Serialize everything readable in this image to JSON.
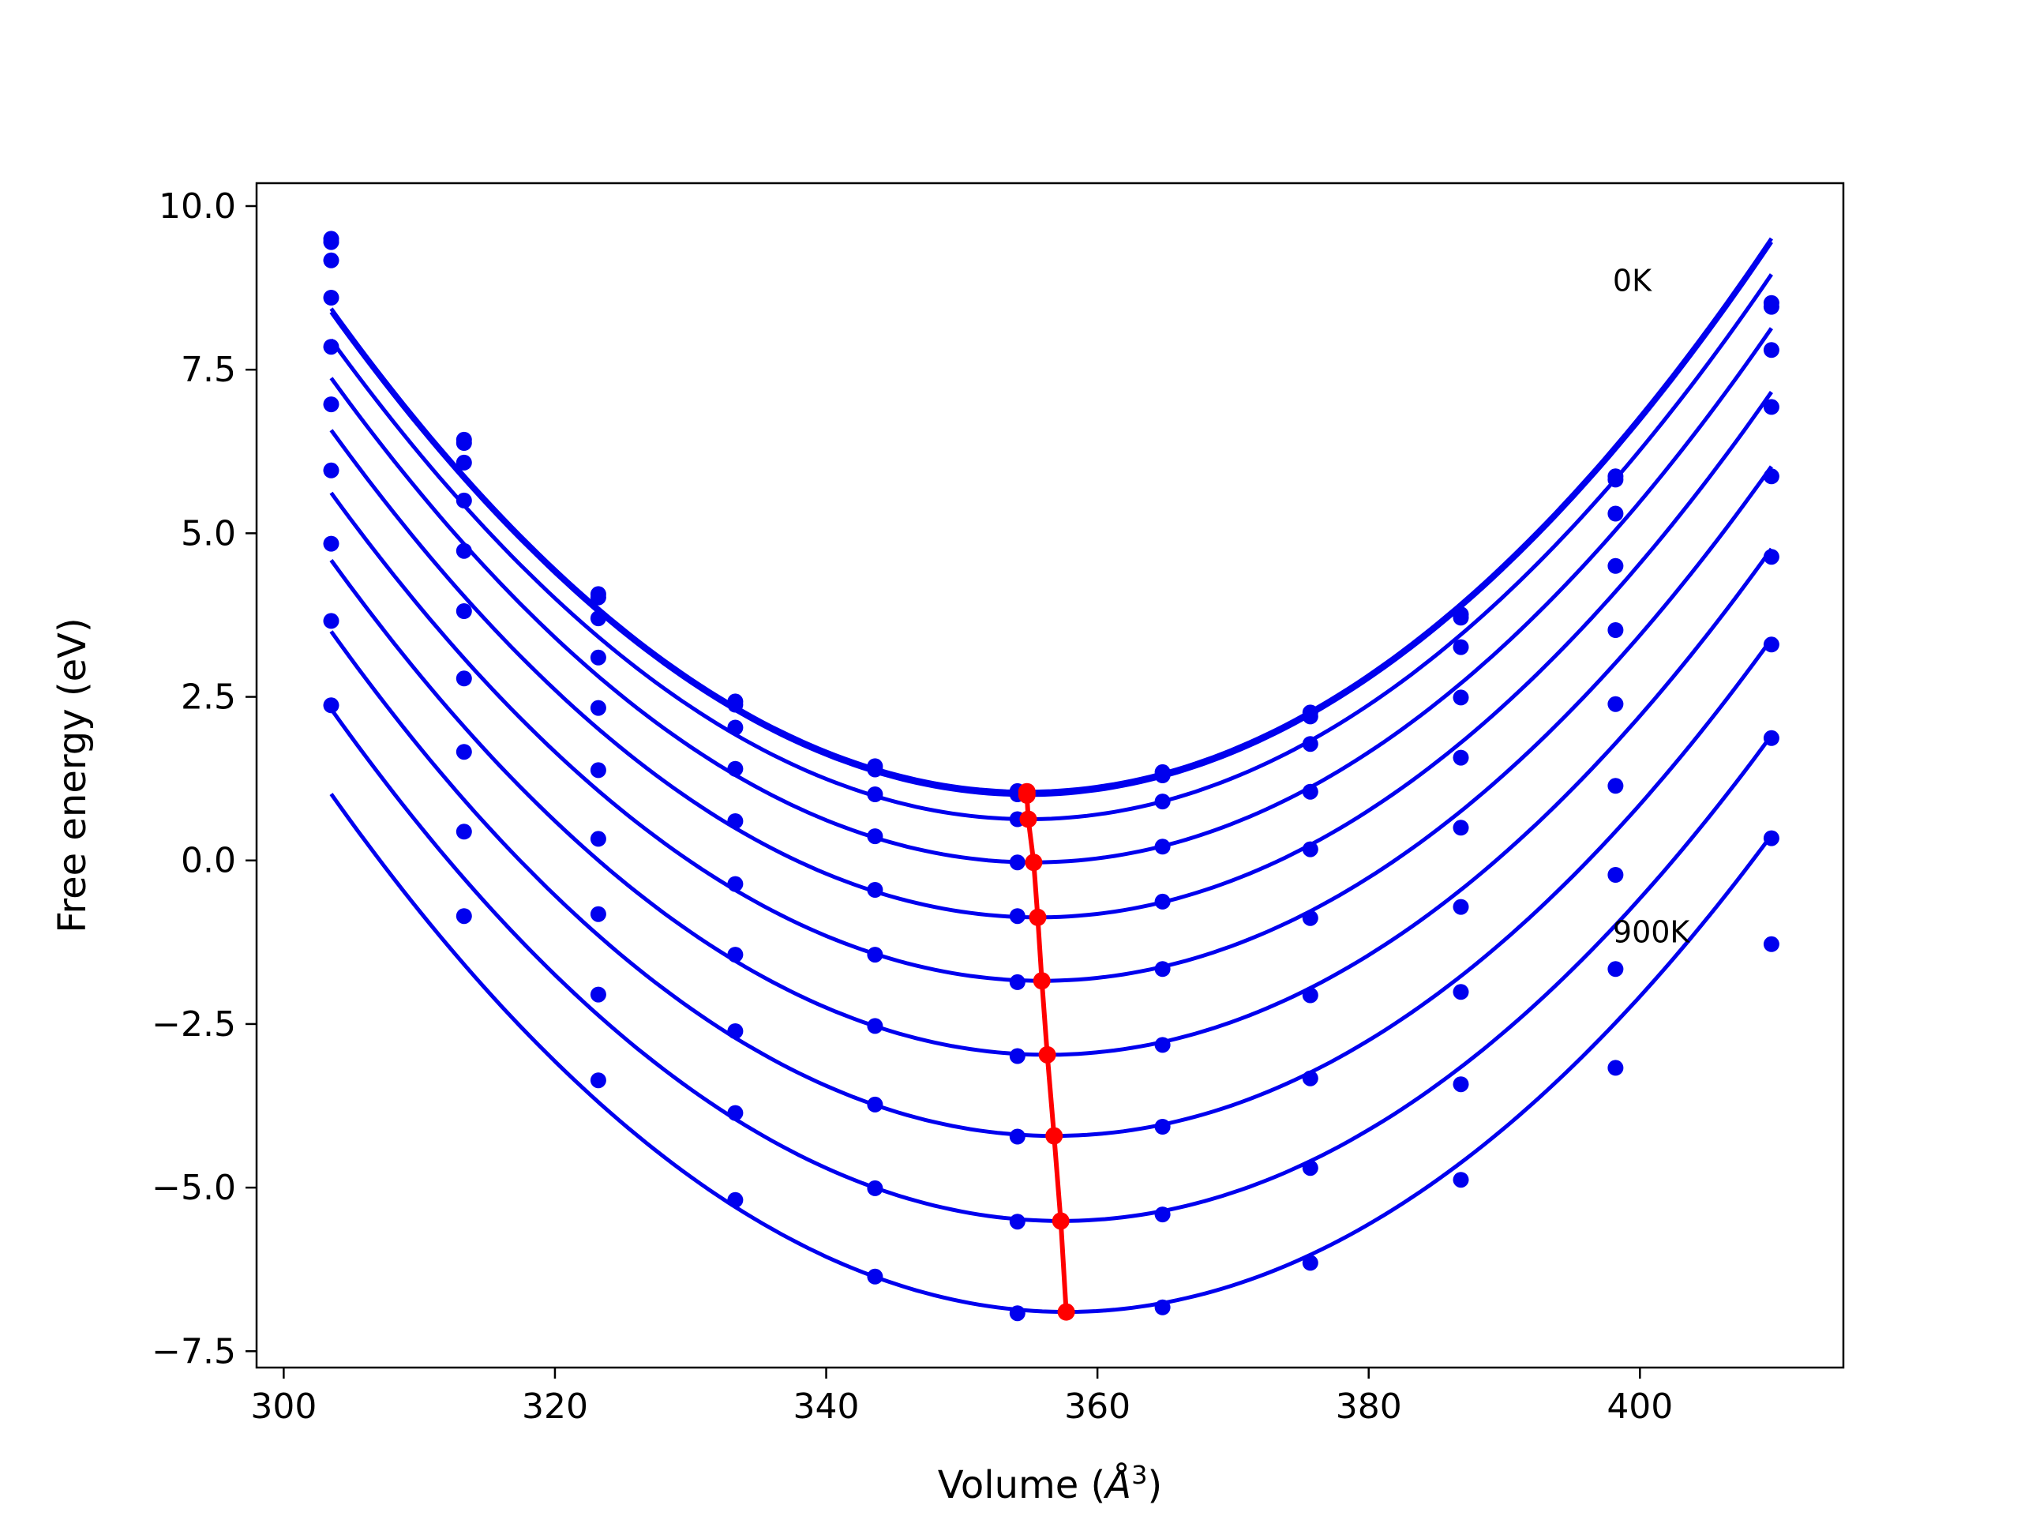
{
  "chart_data": {
    "type": "line",
    "xlabel": "Volume (Å³)",
    "xlabel_parts": {
      "text": "Volume (",
      "symbol": "Å",
      "exponent": "3",
      "close": ")"
    },
    "ylabel": "Free energy (eV)",
    "xlim": [
      298,
      415
    ],
    "ylim": [
      -7.75,
      10.35
    ],
    "x_ticks": [
      300,
      320,
      340,
      360,
      380,
      400
    ],
    "y_ticks": [
      -7.5,
      -5.0,
      -2.5,
      0.0,
      2.5,
      5.0,
      7.5,
      10.0
    ],
    "y_tick_labels": [
      "−7.5",
      "−5.0",
      "−2.5",
      "0.0",
      "2.5",
      "5.0",
      "7.5",
      "10.0"
    ],
    "annotations": [
      {
        "text": "0K",
        "x": 398,
        "y": 8.7
      },
      {
        "text": "900K",
        "x": 398,
        "y": -1.25
      }
    ],
    "curve_color": "#0000ee",
    "minimum_color": "#ff0000",
    "x": [
      303.5,
      313.3,
      323.2,
      333.3,
      343.6,
      354.1,
      364.8,
      375.7,
      386.8,
      398.2,
      409.7
    ],
    "series": [
      {
        "values": [
          9.5,
          6.43,
          4.07,
          2.43,
          1.44,
          1.06,
          1.35,
          2.26,
          3.76,
          5.87,
          8.52
        ],
        "min": [
          354.8,
          1.05
        ]
      },
      {
        "values": [
          9.45,
          6.38,
          4.02,
          2.38,
          1.39,
          1.01,
          1.3,
          2.2,
          3.71,
          5.82,
          8.46
        ],
        "min": [
          354.8,
          1.0
        ]
      },
      {
        "values": [
          9.17,
          6.08,
          3.7,
          2.03,
          1.01,
          0.63,
          0.9,
          1.78,
          3.26,
          5.3,
          7.8
        ],
        "min": [
          354.9,
          0.63
        ]
      },
      {
        "values": [
          8.6,
          5.5,
          3.1,
          1.4,
          0.37,
          -0.03,
          0.21,
          1.05,
          2.49,
          4.5,
          6.93
        ],
        "min": [
          355.3,
          -0.03
        ]
      },
      {
        "values": [
          7.85,
          4.73,
          2.33,
          0.6,
          -0.45,
          -0.85,
          -0.63,
          0.17,
          1.57,
          3.52,
          5.87
        ],
        "min": [
          355.6,
          -0.87
        ]
      },
      {
        "values": [
          6.97,
          3.81,
          1.38,
          -0.36,
          -1.44,
          -1.86,
          -1.66,
          -0.88,
          0.5,
          2.39,
          4.64
        ],
        "min": [
          355.9,
          -1.84
        ]
      },
      {
        "values": [
          5.96,
          2.78,
          0.33,
          -1.44,
          -2.53,
          -2.99,
          -2.82,
          -2.06,
          -0.71,
          1.14,
          3.3
        ],
        "min": [
          356.3,
          -2.97
        ]
      },
      {
        "values": [
          4.84,
          1.66,
          -0.82,
          -2.61,
          -3.73,
          -4.22,
          -4.07,
          -3.33,
          -2.01,
          -0.22,
          1.87
        ],
        "min": [
          356.8,
          -4.21
        ]
      },
      {
        "values": [
          3.66,
          0.44,
          -2.05,
          -3.86,
          -5.01,
          -5.52,
          -5.41,
          -4.7,
          -3.42,
          -1.66,
          0.34
        ],
        "min": [
          357.3,
          -5.51
        ]
      },
      {
        "values": [
          2.37,
          -0.85,
          -3.36,
          -5.19,
          -6.36,
          -6.92,
          -6.83,
          -6.15,
          -4.88,
          -3.17,
          -1.28
        ],
        "min": [
          357.7,
          -6.9
        ]
      }
    ]
  }
}
